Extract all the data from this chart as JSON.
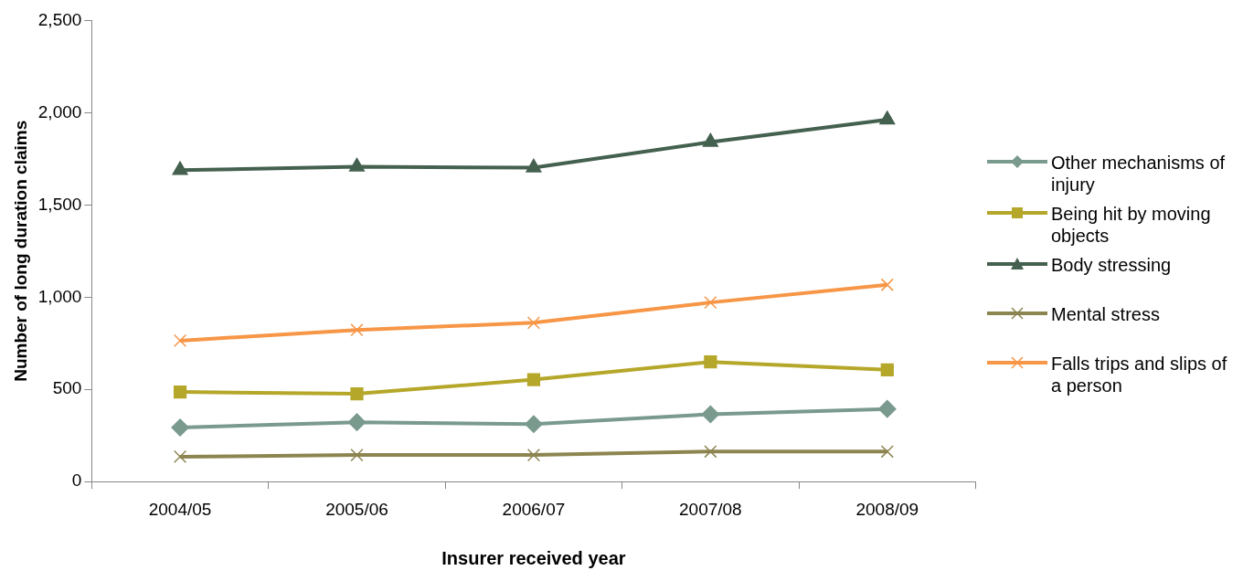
{
  "chart_data": {
    "type": "line",
    "xlabel": "Insurer received year",
    "ylabel": "Number of long duration claims",
    "categories": [
      "2004/05",
      "2005/06",
      "2006/07",
      "2007/08",
      "2008/09"
    ],
    "ylim": [
      0,
      2500
    ],
    "yticks": [
      {
        "value": 0,
        "label": "0"
      },
      {
        "value": 500,
        "label": "500"
      },
      {
        "value": 1000,
        "label": "1,000"
      },
      {
        "value": 1500,
        "label": "1,500"
      },
      {
        "value": 2000,
        "label": "2,000"
      },
      {
        "value": 2500,
        "label": "2,500"
      }
    ],
    "legend": "right",
    "line_style": "solid",
    "series": [
      {
        "name": "Other mechanisms of injury",
        "color": "#7a9a8e",
        "marker": "diamond",
        "values": [
          293,
          322,
          312,
          365,
          394
        ]
      },
      {
        "name": "Being hit by moving objects",
        "color": "#b5a72a",
        "marker": "square",
        "values": [
          486,
          476,
          553,
          649,
          606
        ]
      },
      {
        "name": "Body stressing",
        "color": "#44604f",
        "marker": "triangle",
        "values": [
          1688,
          1707,
          1702,
          1841,
          1962
        ]
      },
      {
        "name": "Mental stress",
        "color": "#8c8550",
        "marker": "cross",
        "values": [
          135,
          144,
          144,
          163,
          163
        ]
      },
      {
        "name": "Falls trips and slips of a person",
        "color": "#f79646",
        "marker": "cross",
        "values": [
          764,
          822,
          861,
          971,
          1067
        ]
      }
    ]
  }
}
